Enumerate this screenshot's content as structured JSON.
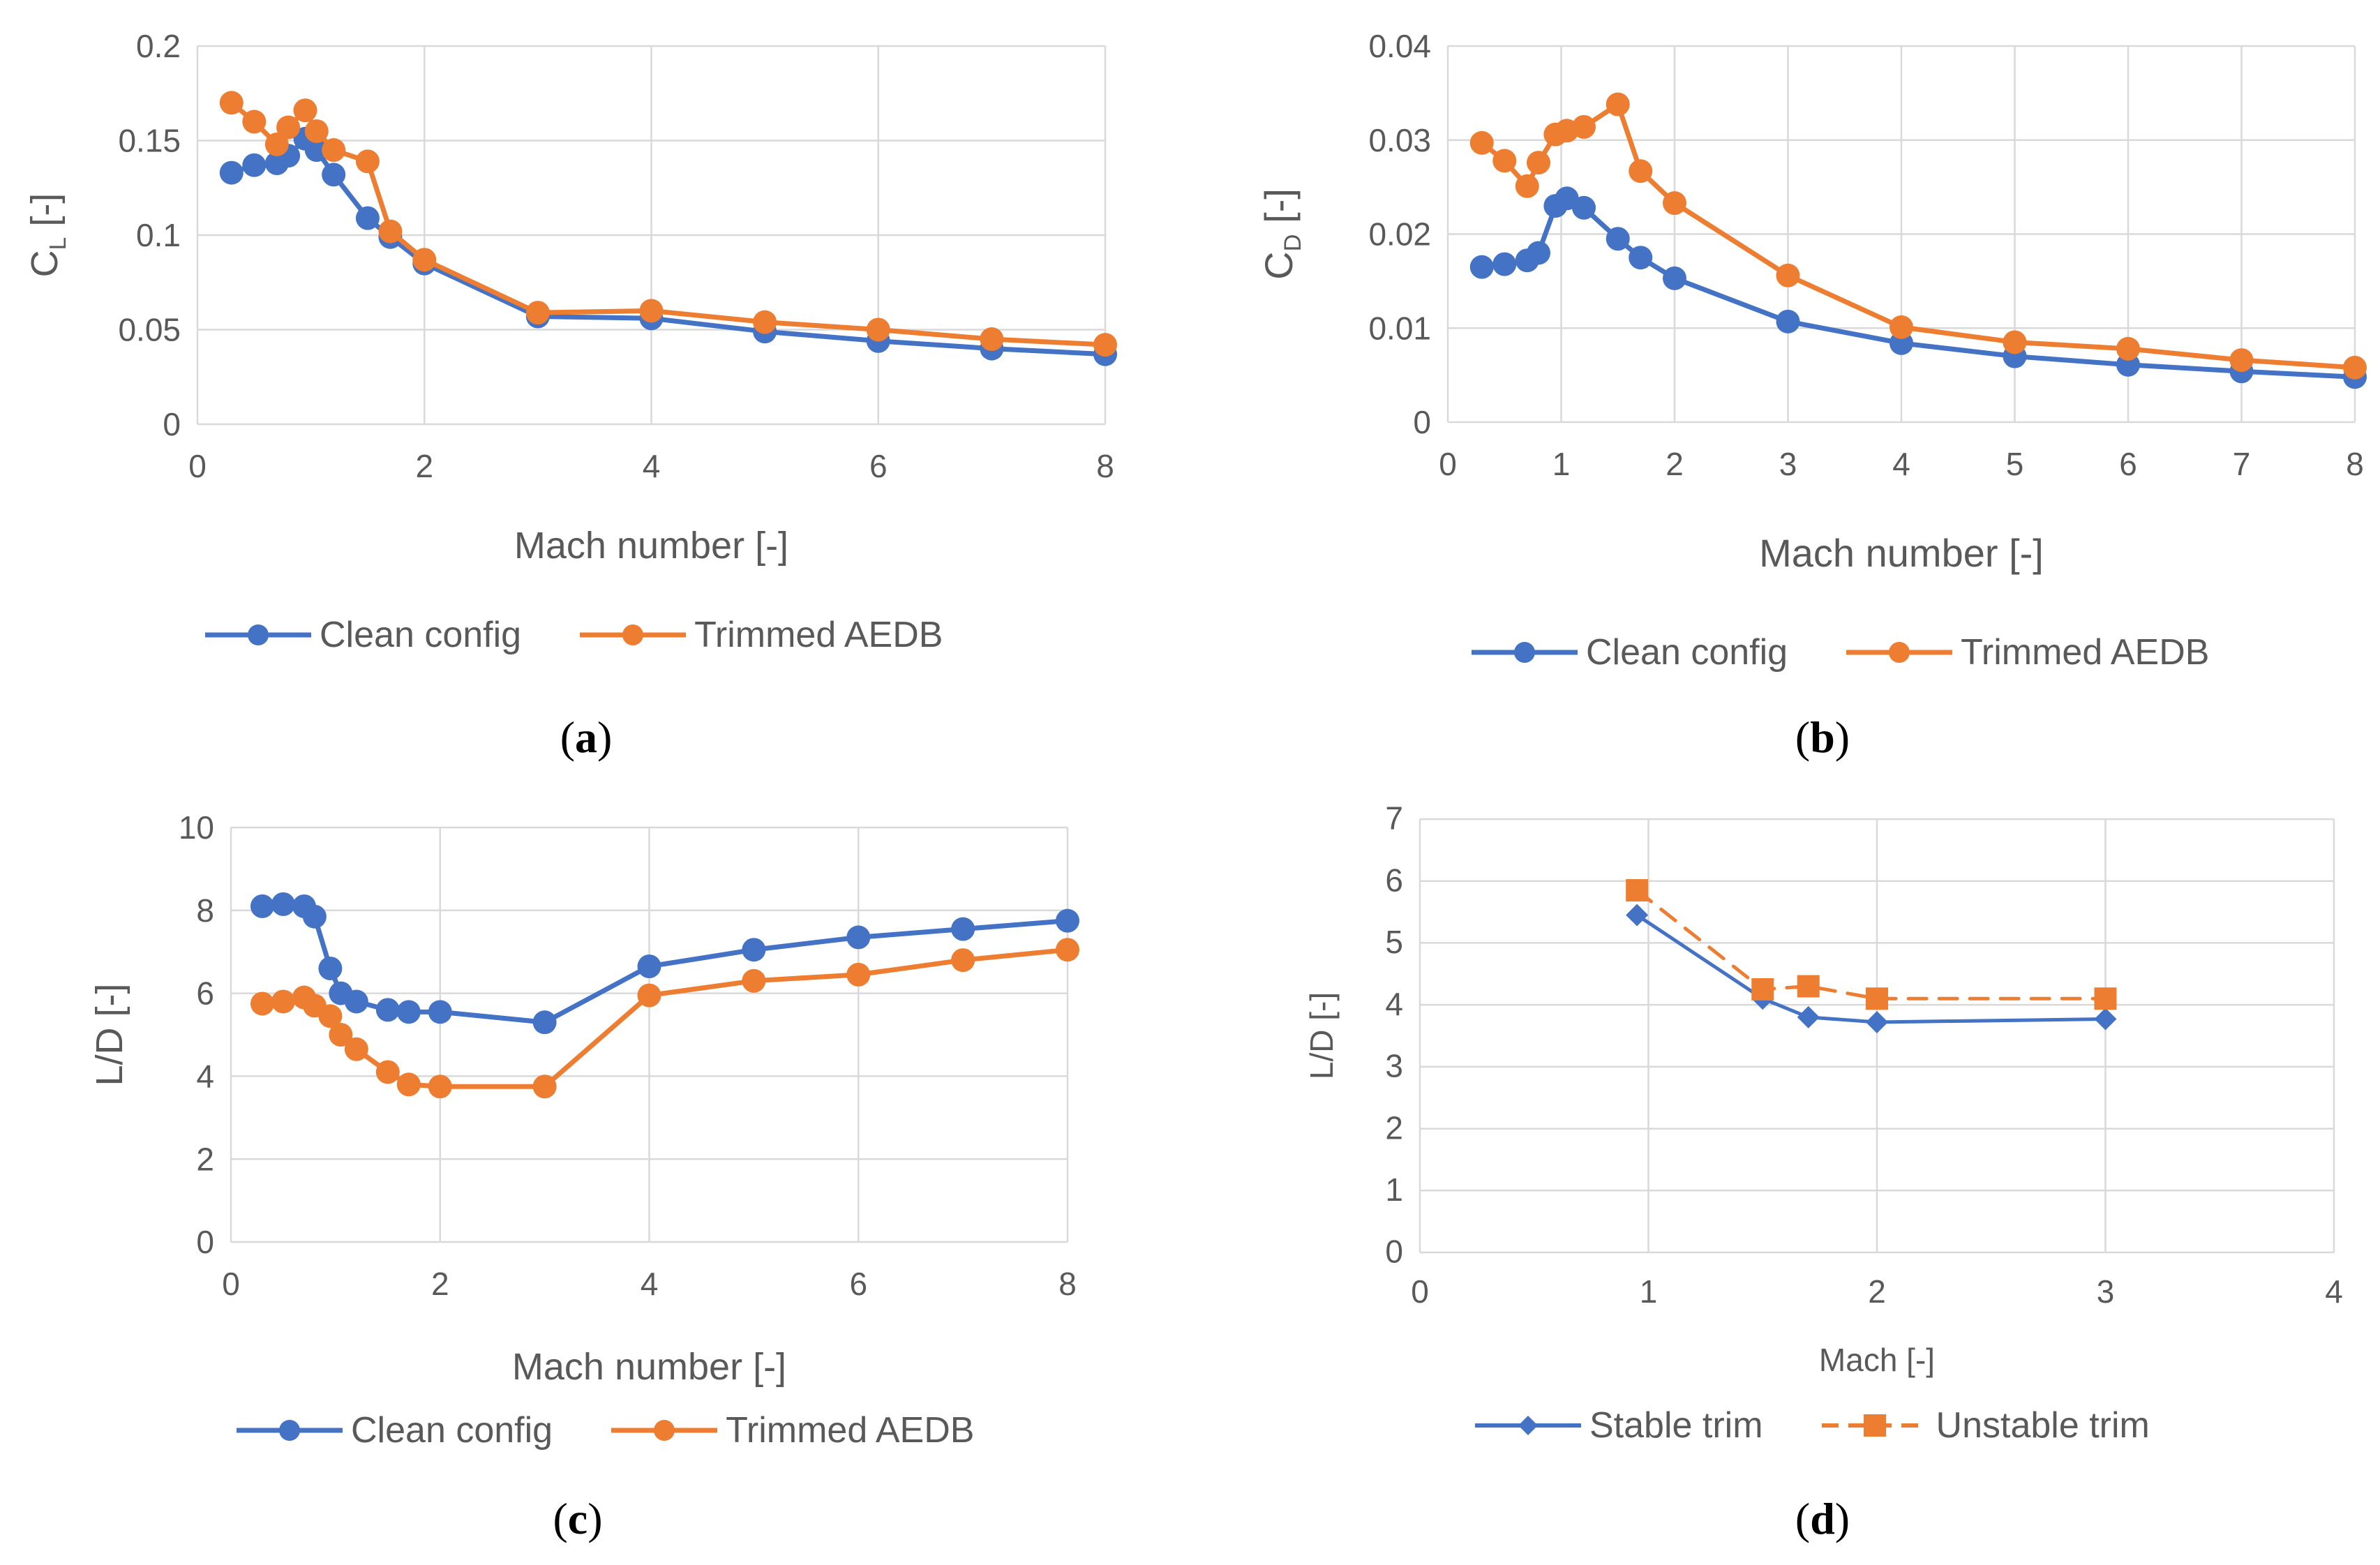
{
  "chart_data": [
    {
      "panel": "(a)",
      "type": "line",
      "xlabel": "Mach number [-]",
      "ylabel": "C_L [-]",
      "ylabel_main": "C",
      "ylabel_sub": "L",
      "ylabel_suffix": " [-]",
      "xlim": [
        0,
        8
      ],
      "ylim": [
        0,
        0.2
      ],
      "xticks": [
        0,
        2,
        4,
        6,
        8
      ],
      "xtick_labels": [
        "0",
        "2",
        "4",
        "6",
        "8"
      ],
      "yticks": [
        0,
        0.05,
        0.1,
        0.15,
        0.2
      ],
      "ytick_labels": [
        "0",
        "0.05",
        "0.1",
        "0.15",
        "0.2"
      ],
      "grid": true,
      "legend_position": "bottom",
      "series": [
        {
          "name": "Clean config",
          "color": "#4472C4",
          "marker": "circle",
          "dash": "solid",
          "x": [
            0.3,
            0.5,
            0.7,
            0.8,
            0.95,
            1.05,
            1.2,
            1.5,
            1.7,
            2,
            3,
            4,
            5,
            6,
            7,
            8
          ],
          "y": [
            0.133,
            0.137,
            0.138,
            0.142,
            0.151,
            0.145,
            0.132,
            0.109,
            0.099,
            0.085,
            0.057,
            0.056,
            0.049,
            0.044,
            0.04,
            0.037
          ]
        },
        {
          "name": "Trimmed AEDB",
          "color": "#ED7D31",
          "marker": "circle",
          "dash": "solid",
          "x": [
            0.3,
            0.5,
            0.7,
            0.8,
            0.95,
            1.05,
            1.2,
            1.5,
            1.7,
            2,
            3,
            4,
            5,
            6,
            7,
            8
          ],
          "y": [
            0.17,
            0.16,
            0.148,
            0.157,
            0.166,
            0.155,
            0.145,
            0.139,
            0.102,
            0.087,
            0.059,
            0.06,
            0.054,
            0.05,
            0.045,
            0.042
          ]
        }
      ]
    },
    {
      "panel": "(b)",
      "type": "line",
      "xlabel": "Mach number [-]",
      "ylabel": "C_D [-]",
      "ylabel_main": "C",
      "ylabel_sub": "D",
      "ylabel_suffix": " [-]",
      "xlim": [
        0,
        8
      ],
      "ylim": [
        0,
        0.04
      ],
      "xticks": [
        0,
        1,
        2,
        3,
        4,
        5,
        6,
        7,
        8
      ],
      "xtick_labels": [
        "0",
        "1",
        "2",
        "3",
        "4",
        "5",
        "6",
        "7",
        "8"
      ],
      "yticks": [
        0,
        0.01,
        0.02,
        0.03,
        0.04
      ],
      "ytick_labels": [
        "0",
        "0.01",
        "0.02",
        "0.03",
        "0.04"
      ],
      "grid": true,
      "legend_position": "bottom",
      "series": [
        {
          "name": "Clean config",
          "color": "#4472C4",
          "marker": "circle",
          "dash": "solid",
          "x": [
            0.3,
            0.5,
            0.7,
            0.8,
            0.95,
            1.05,
            1.2,
            1.5,
            1.7,
            2,
            3,
            4,
            5,
            6,
            7,
            8
          ],
          "y": [
            0.0165,
            0.0168,
            0.0172,
            0.018,
            0.023,
            0.0238,
            0.0228,
            0.0195,
            0.0175,
            0.0153,
            0.0107,
            0.0084,
            0.007,
            0.0061,
            0.0054,
            0.0048
          ]
        },
        {
          "name": "Trimmed AEDB",
          "color": "#ED7D31",
          "marker": "circle",
          "dash": "solid",
          "x": [
            0.3,
            0.5,
            0.7,
            0.8,
            0.95,
            1.05,
            1.2,
            1.5,
            1.7,
            2,
            3,
            4,
            5,
            6,
            7,
            8
          ],
          "y": [
            0.0297,
            0.0278,
            0.0251,
            0.0276,
            0.0306,
            0.031,
            0.0314,
            0.0338,
            0.0267,
            0.0233,
            0.0156,
            0.0101,
            0.0085,
            0.0078,
            0.0066,
            0.0058
          ]
        }
      ]
    },
    {
      "panel": "(c)",
      "type": "line",
      "xlabel": "Mach number [-]",
      "ylabel": "L/D [-]",
      "xlim": [
        0,
        8
      ],
      "ylim": [
        0,
        10
      ],
      "xticks": [
        0,
        2,
        4,
        6,
        8
      ],
      "xtick_labels": [
        "0",
        "2",
        "4",
        "6",
        "8"
      ],
      "yticks": [
        0,
        2,
        4,
        6,
        8,
        10
      ],
      "ytick_labels": [
        "0",
        "2",
        "4",
        "6",
        "8",
        "10"
      ],
      "grid": true,
      "legend_position": "bottom",
      "series": [
        {
          "name": "Clean config",
          "color": "#4472C4",
          "marker": "circle",
          "dash": "solid",
          "x": [
            0.3,
            0.5,
            0.7,
            0.8,
            0.95,
            1.05,
            1.2,
            1.5,
            1.7,
            2,
            3,
            4,
            5,
            6,
            7,
            8
          ],
          "y": [
            8.1,
            8.15,
            8.1,
            7.85,
            6.6,
            6.0,
            5.8,
            5.6,
            5.55,
            5.55,
            5.3,
            6.65,
            7.05,
            7.35,
            7.55,
            7.75
          ]
        },
        {
          "name": "Trimmed AEDB",
          "color": "#ED7D31",
          "marker": "circle",
          "dash": "solid",
          "x": [
            0.3,
            0.5,
            0.7,
            0.8,
            0.95,
            1.05,
            1.2,
            1.5,
            1.7,
            2,
            3,
            4,
            5,
            6,
            7,
            8
          ],
          "y": [
            5.75,
            5.8,
            5.9,
            5.7,
            5.45,
            5.0,
            4.65,
            4.1,
            3.8,
            3.75,
            3.75,
            5.95,
            6.3,
            6.45,
            6.8,
            7.05
          ]
        }
      ]
    },
    {
      "panel": "(d)",
      "type": "line",
      "xlabel": "Mach [-]",
      "ylabel": "L/D [-]",
      "xlim": [
        0,
        4
      ],
      "ylim": [
        0,
        7
      ],
      "xticks": [
        0,
        1,
        2,
        3,
        4
      ],
      "xtick_labels": [
        "0",
        "1",
        "2",
        "3",
        "4"
      ],
      "yticks": [
        0,
        1,
        2,
        3,
        4,
        5,
        6,
        7
      ],
      "ytick_labels": [
        "0",
        "1",
        "2",
        "3",
        "4",
        "5",
        "6",
        "7"
      ],
      "grid": true,
      "legend_position": "bottom",
      "series": [
        {
          "name": "Stable trim",
          "color": "#4472C4",
          "marker": "diamond",
          "dash": "solid",
          "x": [
            0.95,
            1.5,
            1.7,
            2,
            3
          ],
          "y": [
            5.45,
            4.1,
            3.8,
            3.72,
            3.77
          ]
        },
        {
          "name": "Unstable trim",
          "color": "#ED7D31",
          "marker": "square",
          "dash": "dashed",
          "x": [
            0.95,
            1.5,
            1.7,
            2,
            3
          ],
          "y": [
            5.85,
            4.25,
            4.3,
            4.1,
            4.1
          ]
        }
      ]
    }
  ]
}
